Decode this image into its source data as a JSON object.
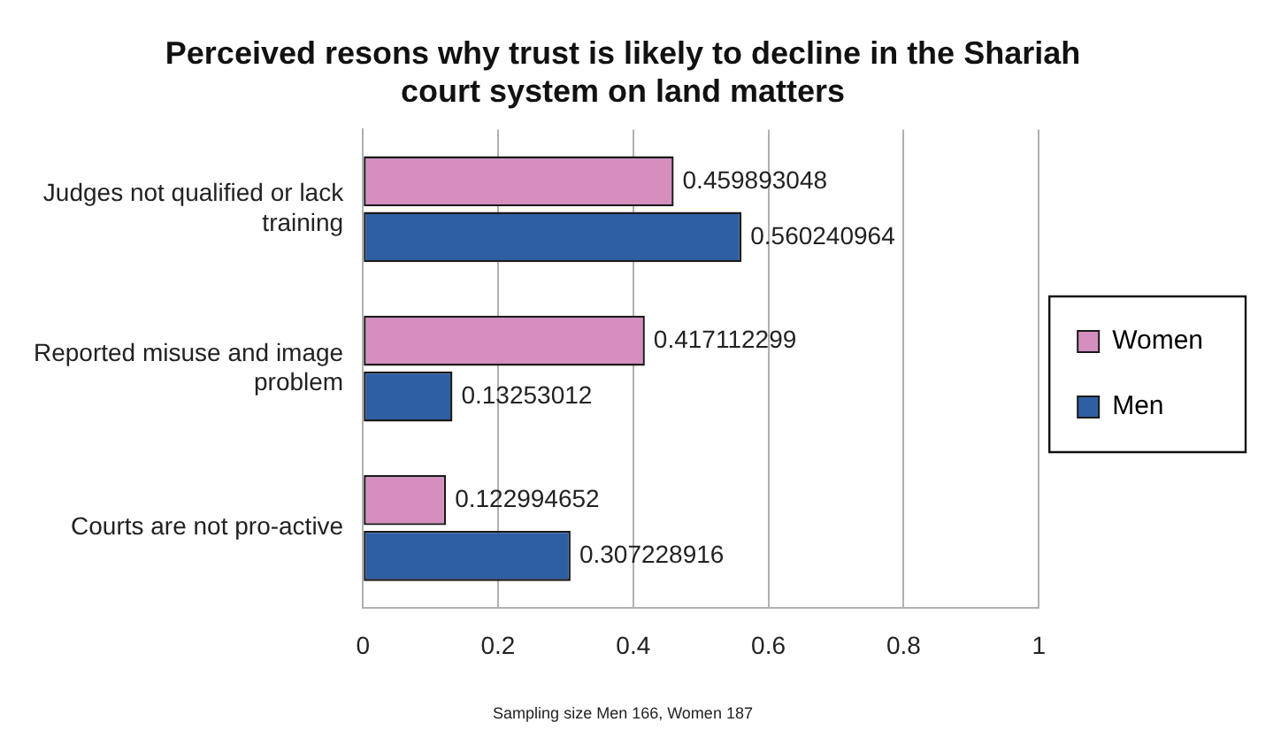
{
  "chart_data": {
    "type": "bar",
    "orientation": "horizontal",
    "title": "Perceived resons why trust is likely to decline in the Shariah court system on land matters",
    "categories": [
      "Judges not qualified or lack training",
      "Reported misuse and image problem",
      "Courts are not pro-active"
    ],
    "series": [
      {
        "name": "Women",
        "color": "#d48fbf",
        "values": [
          0.459893048,
          0.417112299,
          0.122994652
        ]
      },
      {
        "name": "Men",
        "color": "#2e5fa3",
        "values": [
          0.560240964,
          0.13253012,
          0.307228916
        ]
      }
    ],
    "xlim": [
      0,
      1
    ],
    "xticks": [
      0,
      0.2,
      0.4,
      0.6,
      0.8,
      1
    ],
    "grid": "x",
    "legend": "right",
    "data_labels": true,
    "annotations": [
      "Sampling size Men 166, Women 187"
    ]
  }
}
